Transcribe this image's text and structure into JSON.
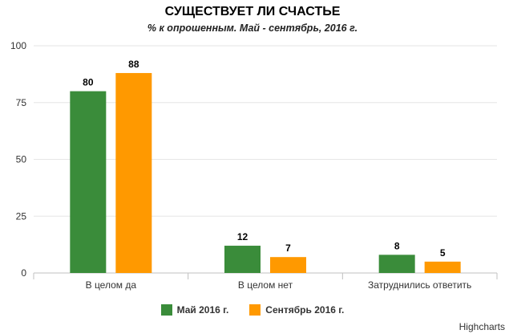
{
  "chart_data": {
    "type": "bar",
    "title": "СУЩЕСТВУЕТ ЛИ СЧАСТЬЕ",
    "subtitle": "% к опрошенным. Май - сентябрь, 2016 г.",
    "categories": [
      "В целом да",
      "В целом нет",
      "Затруднились ответить"
    ],
    "series": [
      {
        "name": "Май 2016 г.",
        "values": [
          80,
          12,
          8
        ],
        "color": "#3a8c3a"
      },
      {
        "name": "Сентябрь 2016 г.",
        "values": [
          88,
          7,
          5
        ],
        "color": "#ff9900"
      }
    ],
    "ylim": [
      0,
      100
    ],
    "yticks": [
      0,
      25,
      50,
      75,
      100
    ],
    "xlabel": "",
    "ylabel": "",
    "grid": true,
    "legend": "bottom-center",
    "data_labels": true
  },
  "credits": "Highcharts"
}
